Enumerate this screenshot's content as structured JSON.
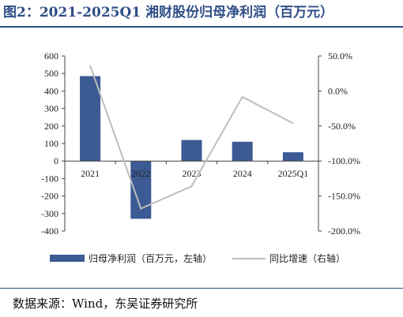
{
  "title": "图2：2021-2025Q1 湘财股份归母净利润（百万元）",
  "source": "数据来源：Wind，东吴证券研究所",
  "chart_data": {
    "type": "bar",
    "categories": [
      "2021",
      "2022",
      "2023",
      "2024",
      "2025Q1"
    ],
    "series": [
      {
        "name": "归母净利润（百万元，左轴）",
        "type": "bar",
        "axis": "left",
        "values": [
          485,
          -330,
          120,
          110,
          50
        ]
      },
      {
        "name": "同比增速（右轴）",
        "type": "line",
        "axis": "right",
        "values": [
          36.0,
          -168.0,
          -136.0,
          -8.5,
          -46.0
        ]
      }
    ],
    "y_left": {
      "ylim": [
        -400,
        600
      ],
      "ticks": [
        600,
        500,
        400,
        300,
        200,
        100,
        0,
        -100,
        -200,
        -300,
        -400
      ],
      "tick_labels": [
        "600",
        "500",
        "400",
        "300",
        "200",
        "100",
        "0",
        "-100",
        "-200",
        "-300",
        "-400"
      ]
    },
    "y_right": {
      "ylim": [
        -200,
        50
      ],
      "ticks": [
        50,
        0,
        -50,
        -100,
        -150,
        -200
      ],
      "tick_labels": [
        "50.0%",
        "0.0%",
        "-50.0%",
        "-100.0%",
        "-150.0%",
        "-200.0%"
      ]
    },
    "legend": {
      "placement": "bottom",
      "entries": [
        "归母净利润（百万元，左轴）",
        "同比增速（右轴）"
      ]
    },
    "grid": false,
    "colors": {
      "bar": "#3c5a93",
      "line": "#bdbdbd",
      "axis": "#444444",
      "title": "#2f4e86"
    }
  }
}
